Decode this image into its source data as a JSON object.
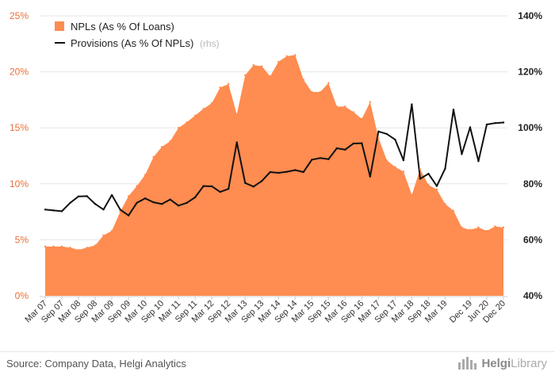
{
  "chart_data": {
    "type": "area",
    "categories": [
      "Mar 07",
      "Jun 07",
      "Sep 07",
      "Dec 07",
      "Mar 08",
      "Jun 08",
      "Sep 08",
      "Dec 08",
      "Mar 09",
      "Jun 09",
      "Sep 09",
      "Dec 09",
      "Mar 10",
      "Jun 10",
      "Sep 10",
      "Dec 10",
      "Mar 11",
      "Jun 11",
      "Sep 11",
      "Dec 11",
      "Mar 12",
      "Jun 12",
      "Sep 12",
      "Dec 12",
      "Mar 13",
      "Jun 13",
      "Sep 13",
      "Dec 13",
      "Mar 14",
      "Jun 14",
      "Sep 14",
      "Dec 14",
      "Mar 15",
      "Jun 15",
      "Sep 15",
      "Dec 15",
      "Mar 16",
      "Jun 16",
      "Sep 16",
      "Dec 16",
      "Mar 17",
      "Jun 17",
      "Sep 17",
      "Dec 17",
      "Mar 18",
      "Jun 18",
      "Sep 18",
      "Dec 18",
      "Mar 19",
      "Jun 19",
      "Sep 19",
      "Dec 19",
      "Mar 20",
      "Jun 20",
      "Sep 20",
      "Dec 20"
    ],
    "xtick_labels": [
      "Mar 07",
      "Sep 07",
      "Mar 08",
      "Sep 08",
      "Mar 09",
      "Sep 09",
      "Mar 10",
      "Sep 10",
      "Mar 11",
      "Sep 11",
      "Mar 12",
      "Sep 12",
      "Mar 13",
      "Sep 13",
      "Mar 14",
      "Sep 14",
      "Mar 15",
      "Sep 15",
      "Mar 16",
      "Sep 16",
      "Mar 17",
      "Sep 17",
      "Mar 18",
      "Sep 18",
      "Mar 19",
      "Dec 19",
      "Jun 20",
      "Dec 20"
    ],
    "series": [
      {
        "name": "NPLs (As % Of Loans)",
        "axis": "left",
        "style": "area",
        "color": "#ff8c50",
        "values": [
          4.4,
          4.4,
          4.4,
          4.3,
          4.1,
          4.3,
          4.5,
          5.4,
          5.8,
          7.5,
          8.9,
          9.8,
          10.8,
          12.4,
          13.3,
          13.8,
          15.0,
          15.5,
          16.1,
          16.7,
          17.2,
          18.6,
          18.9,
          16.2,
          19.7,
          20.6,
          20.5,
          19.6,
          20.9,
          21.4,
          21.5,
          19.3,
          18.2,
          18.2,
          19.0,
          16.9,
          16.9,
          16.4,
          15.8,
          17.3,
          14.1,
          12.1,
          11.5,
          11.1,
          9.0,
          11.3,
          9.9,
          9.5,
          8.2,
          7.6,
          6.1,
          5.9,
          6.1,
          5.8,
          6.2,
          6.1
        ]
      },
      {
        "name": "Provisions (As % Of NPLs)",
        "name_suffix": "(rhs)",
        "axis": "right",
        "style": "line",
        "color": "#111111",
        "values": [
          70.8,
          70.5,
          70.2,
          73.2,
          75.5,
          75.6,
          72.8,
          70.8,
          76.0,
          70.8,
          68.7,
          73.2,
          74.8,
          73.4,
          72.8,
          74.4,
          72.2,
          73.2,
          75.2,
          79.2,
          79.1,
          77.1,
          78.2,
          94.8,
          80.3,
          79.0,
          81.0,
          84.2,
          83.9,
          84.3,
          84.9,
          84.2,
          88.6,
          89.2,
          88.8,
          92.7,
          92.2,
          94.4,
          94.5,
          82.6,
          98.7,
          97.8,
          95.8,
          88.4,
          108.4,
          81.8,
          83.6,
          79.2,
          85.4,
          106.5,
          90.6,
          100.2,
          88.1,
          101.2,
          101.7,
          101.9
        ]
      }
    ],
    "y_left": {
      "min": 0,
      "max": 25,
      "ticks": [
        "0%",
        "5%",
        "10%",
        "15%",
        "20%",
        "25%"
      ]
    },
    "y_right": {
      "min": 40,
      "max": 140,
      "ticks": [
        "40%",
        "60%",
        "80%",
        "100%",
        "120%",
        "140%"
      ]
    },
    "grid": true,
    "legend_position": "top-left"
  },
  "footer": {
    "source": "Source: Company Data, Helgi Analytics",
    "brand_strong": "Helgi",
    "brand_light": "Library"
  }
}
